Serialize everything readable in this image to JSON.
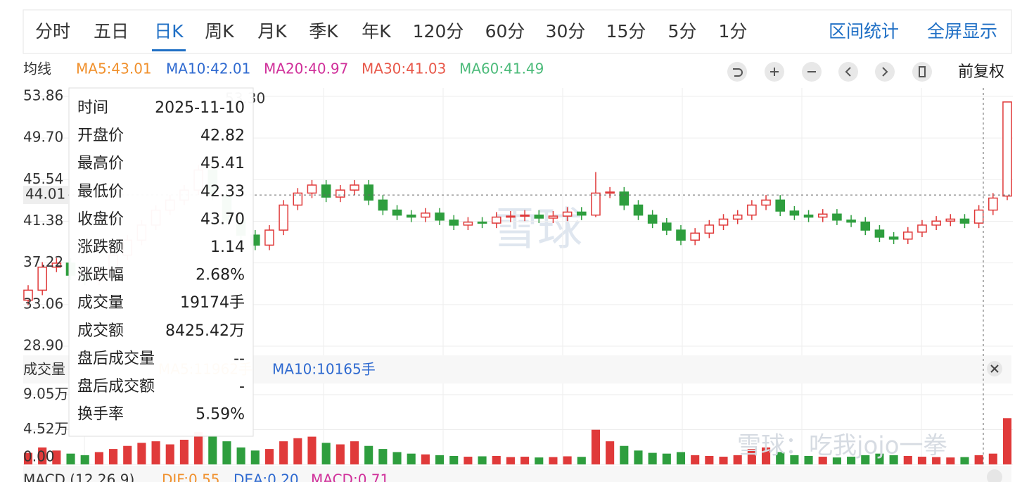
{
  "tabs": [
    "分时",
    "五日",
    "日K",
    "周K",
    "月K",
    "季K",
    "年K",
    "120分",
    "60分",
    "30分",
    "15分",
    "5分",
    "1分"
  ],
  "tools": [
    "区间统计",
    "全屏显示"
  ],
  "ma_label": "均线",
  "ma_legend": [
    {
      "text": "MA5:43.01",
      "color": "#f0902c"
    },
    {
      "text": "MA10:42.01",
      "color": "#2f6ad0"
    },
    {
      "text": "MA20:40.97",
      "color": "#d0309a"
    },
    {
      "text": "MA30:41.03",
      "color": "#e8584a"
    },
    {
      "text": "MA60:41.49",
      "color": "#4cbb7a"
    }
  ],
  "adjust": "前复权",
  "watermark": "雪球",
  "footer_watermark": "雪球：吃我jojo一拳",
  "chart_data": {
    "type": "candlestick",
    "up_color": "#e03a3a",
    "down_color": "#2e9e3e",
    "open": [
      33.5,
      34.5,
      36.8,
      37.2,
      36.0,
      35.5,
      36.5,
      38.0,
      39.5,
      41.0,
      42.5,
      43.5,
      44.5,
      46.5,
      44.0,
      41.5,
      40.0,
      39.0,
      40.5,
      43.0,
      44.2,
      45.0,
      43.8,
      44.5,
      45.0,
      43.5,
      42.5,
      42.0,
      41.8,
      42.2,
      41.5,
      41.0,
      41.3,
      41.2,
      41.8,
      41.9,
      42.0,
      41.7,
      41.9,
      42.3,
      42.0,
      44.2,
      44.3,
      43.0,
      42.0,
      41.2,
      40.5,
      39.5,
      40.2,
      41.0,
      41.6,
      42.0,
      43.0,
      43.5,
      42.4,
      42.0,
      41.8,
      42.1,
      41.5,
      41.3,
      40.5,
      39.8,
      39.6,
      40.3,
      41.0,
      41.4,
      41.6,
      41.2,
      42.5,
      43.9
    ],
    "high": [
      35.0,
      37.3,
      37.7,
      37.7,
      36.5,
      37.0,
      38.5,
      40.0,
      41.5,
      43.0,
      44.0,
      45.0,
      47.0,
      47.0,
      44.5,
      42.0,
      40.5,
      41.0,
      43.5,
      44.7,
      45.5,
      45.5,
      45.0,
      45.5,
      45.5,
      44.0,
      43.0,
      42.5,
      42.7,
      42.7,
      42.0,
      41.8,
      41.8,
      42.3,
      42.4,
      42.5,
      42.5,
      42.4,
      42.8,
      42.8,
      46.3,
      44.8,
      44.8,
      43.5,
      42.5,
      41.7,
      41.0,
      40.7,
      41.5,
      42.1,
      42.5,
      43.5,
      44.0,
      44.0,
      42.9,
      42.5,
      42.6,
      42.6,
      42.0,
      41.8,
      41.0,
      40.3,
      40.8,
      41.5,
      41.9,
      42.1,
      42.1,
      43.0,
      44.2,
      53.3
    ],
    "low": [
      33.0,
      34.0,
      36.3,
      35.5,
      35.0,
      35.0,
      36.0,
      37.5,
      39.0,
      40.5,
      42.0,
      43.0,
      44.0,
      43.5,
      41.0,
      39.5,
      38.5,
      38.5,
      40.0,
      42.5,
      43.7,
      43.3,
      43.3,
      44.0,
      43.0,
      42.0,
      41.5,
      41.3,
      41.3,
      41.0,
      40.5,
      40.5,
      40.7,
      40.7,
      41.3,
      41.4,
      41.2,
      41.2,
      41.4,
      41.5,
      41.8,
      43.7,
      42.5,
      41.5,
      40.7,
      40.0,
      39.0,
      39.0,
      39.7,
      40.5,
      41.1,
      41.5,
      42.5,
      41.9,
      41.5,
      41.3,
      41.3,
      41.0,
      40.8,
      40.0,
      39.3,
      39.1,
      39.1,
      39.8,
      40.5,
      40.9,
      40.7,
      40.7,
      42.0,
      43.5
    ],
    "close": [
      34.5,
      36.8,
      37.2,
      36.0,
      35.5,
      36.5,
      38.0,
      39.5,
      41.0,
      42.5,
      43.5,
      44.5,
      46.5,
      44.0,
      41.5,
      40.0,
      39.0,
      40.5,
      43.0,
      44.2,
      45.0,
      43.8,
      44.5,
      45.0,
      43.5,
      42.5,
      42.0,
      41.8,
      42.2,
      41.5,
      41.0,
      41.3,
      41.2,
      41.8,
      41.9,
      42.0,
      41.7,
      41.9,
      42.3,
      42.0,
      44.2,
      44.3,
      43.0,
      42.0,
      41.2,
      40.5,
      39.5,
      40.2,
      41.0,
      41.6,
      42.0,
      43.0,
      43.5,
      42.4,
      42.0,
      41.8,
      42.1,
      41.5,
      41.3,
      40.5,
      39.8,
      39.6,
      40.3,
      41.0,
      41.4,
      41.6,
      41.2,
      42.5,
      43.7,
      53.3
    ],
    "volume": [
      15000,
      22000,
      18000,
      14000,
      12000,
      16000,
      20000,
      24000,
      28000,
      30000,
      26000,
      32000,
      42000,
      38000,
      30000,
      22000,
      18000,
      20000,
      30000,
      34000,
      36000,
      28000,
      26000,
      30000,
      24000,
      20000,
      16000,
      14000,
      13000,
      12000,
      11000,
      10000,
      10500,
      11000,
      9500,
      10000,
      9000,
      9500,
      10500,
      9800,
      45000,
      30000,
      24000,
      18000,
      15000,
      14000,
      16000,
      12000,
      11000,
      10000,
      12000,
      20000,
      22000,
      16000,
      12000,
      11000,
      10000,
      9000,
      10000,
      12000,
      14000,
      12000,
      11000,
      10000,
      9500,
      9000,
      9500,
      12000,
      14000,
      60000
    ],
    "ylim": [
      27.99,
      54.7
    ],
    "yticks": [
      53.86,
      {
        "value": 49.7,
        "label": "49.70"
      },
      45.54,
      41.38,
      37.22,
      33.06,
      {
        "value": 28.9,
        "label": "28.90"
      }
    ],
    "current_price": 44.01,
    "max_label": {
      "value": 53.3,
      "label": "53.30"
    },
    "volume_title": "成交量",
    "volume_ma": [
      "MA5:11962手",
      "MA10:10165手"
    ],
    "volume_ylim": [
      0,
      105000
    ],
    "volume_ticks": [
      {
        "value": 90500,
        "label": "9.05万"
      },
      {
        "value": 45200,
        "label": "4.52万"
      },
      {
        "value": 0,
        "label": "0.00"
      }
    ],
    "macd": [
      "MACD (12,26,9)",
      "DIF:0.55",
      "DEA:0.20",
      "MACD:0.71"
    ]
  },
  "tooltip": [
    [
      "时间",
      "2025-11-10"
    ],
    [
      "开盘价",
      "42.82"
    ],
    [
      "最高价",
      "45.41"
    ],
    [
      "最低价",
      "42.33"
    ],
    [
      "收盘价",
      "43.70"
    ],
    [
      "涨跌额",
      "1.14"
    ],
    [
      "涨跌幅",
      "2.68%"
    ],
    [
      "成交量",
      "19174手"
    ],
    [
      "成交额",
      "8425.42万"
    ],
    [
      "盘后成交量",
      "--"
    ],
    [
      "盘后成交额",
      "-"
    ],
    [
      "换手率",
      "5.59%"
    ]
  ]
}
